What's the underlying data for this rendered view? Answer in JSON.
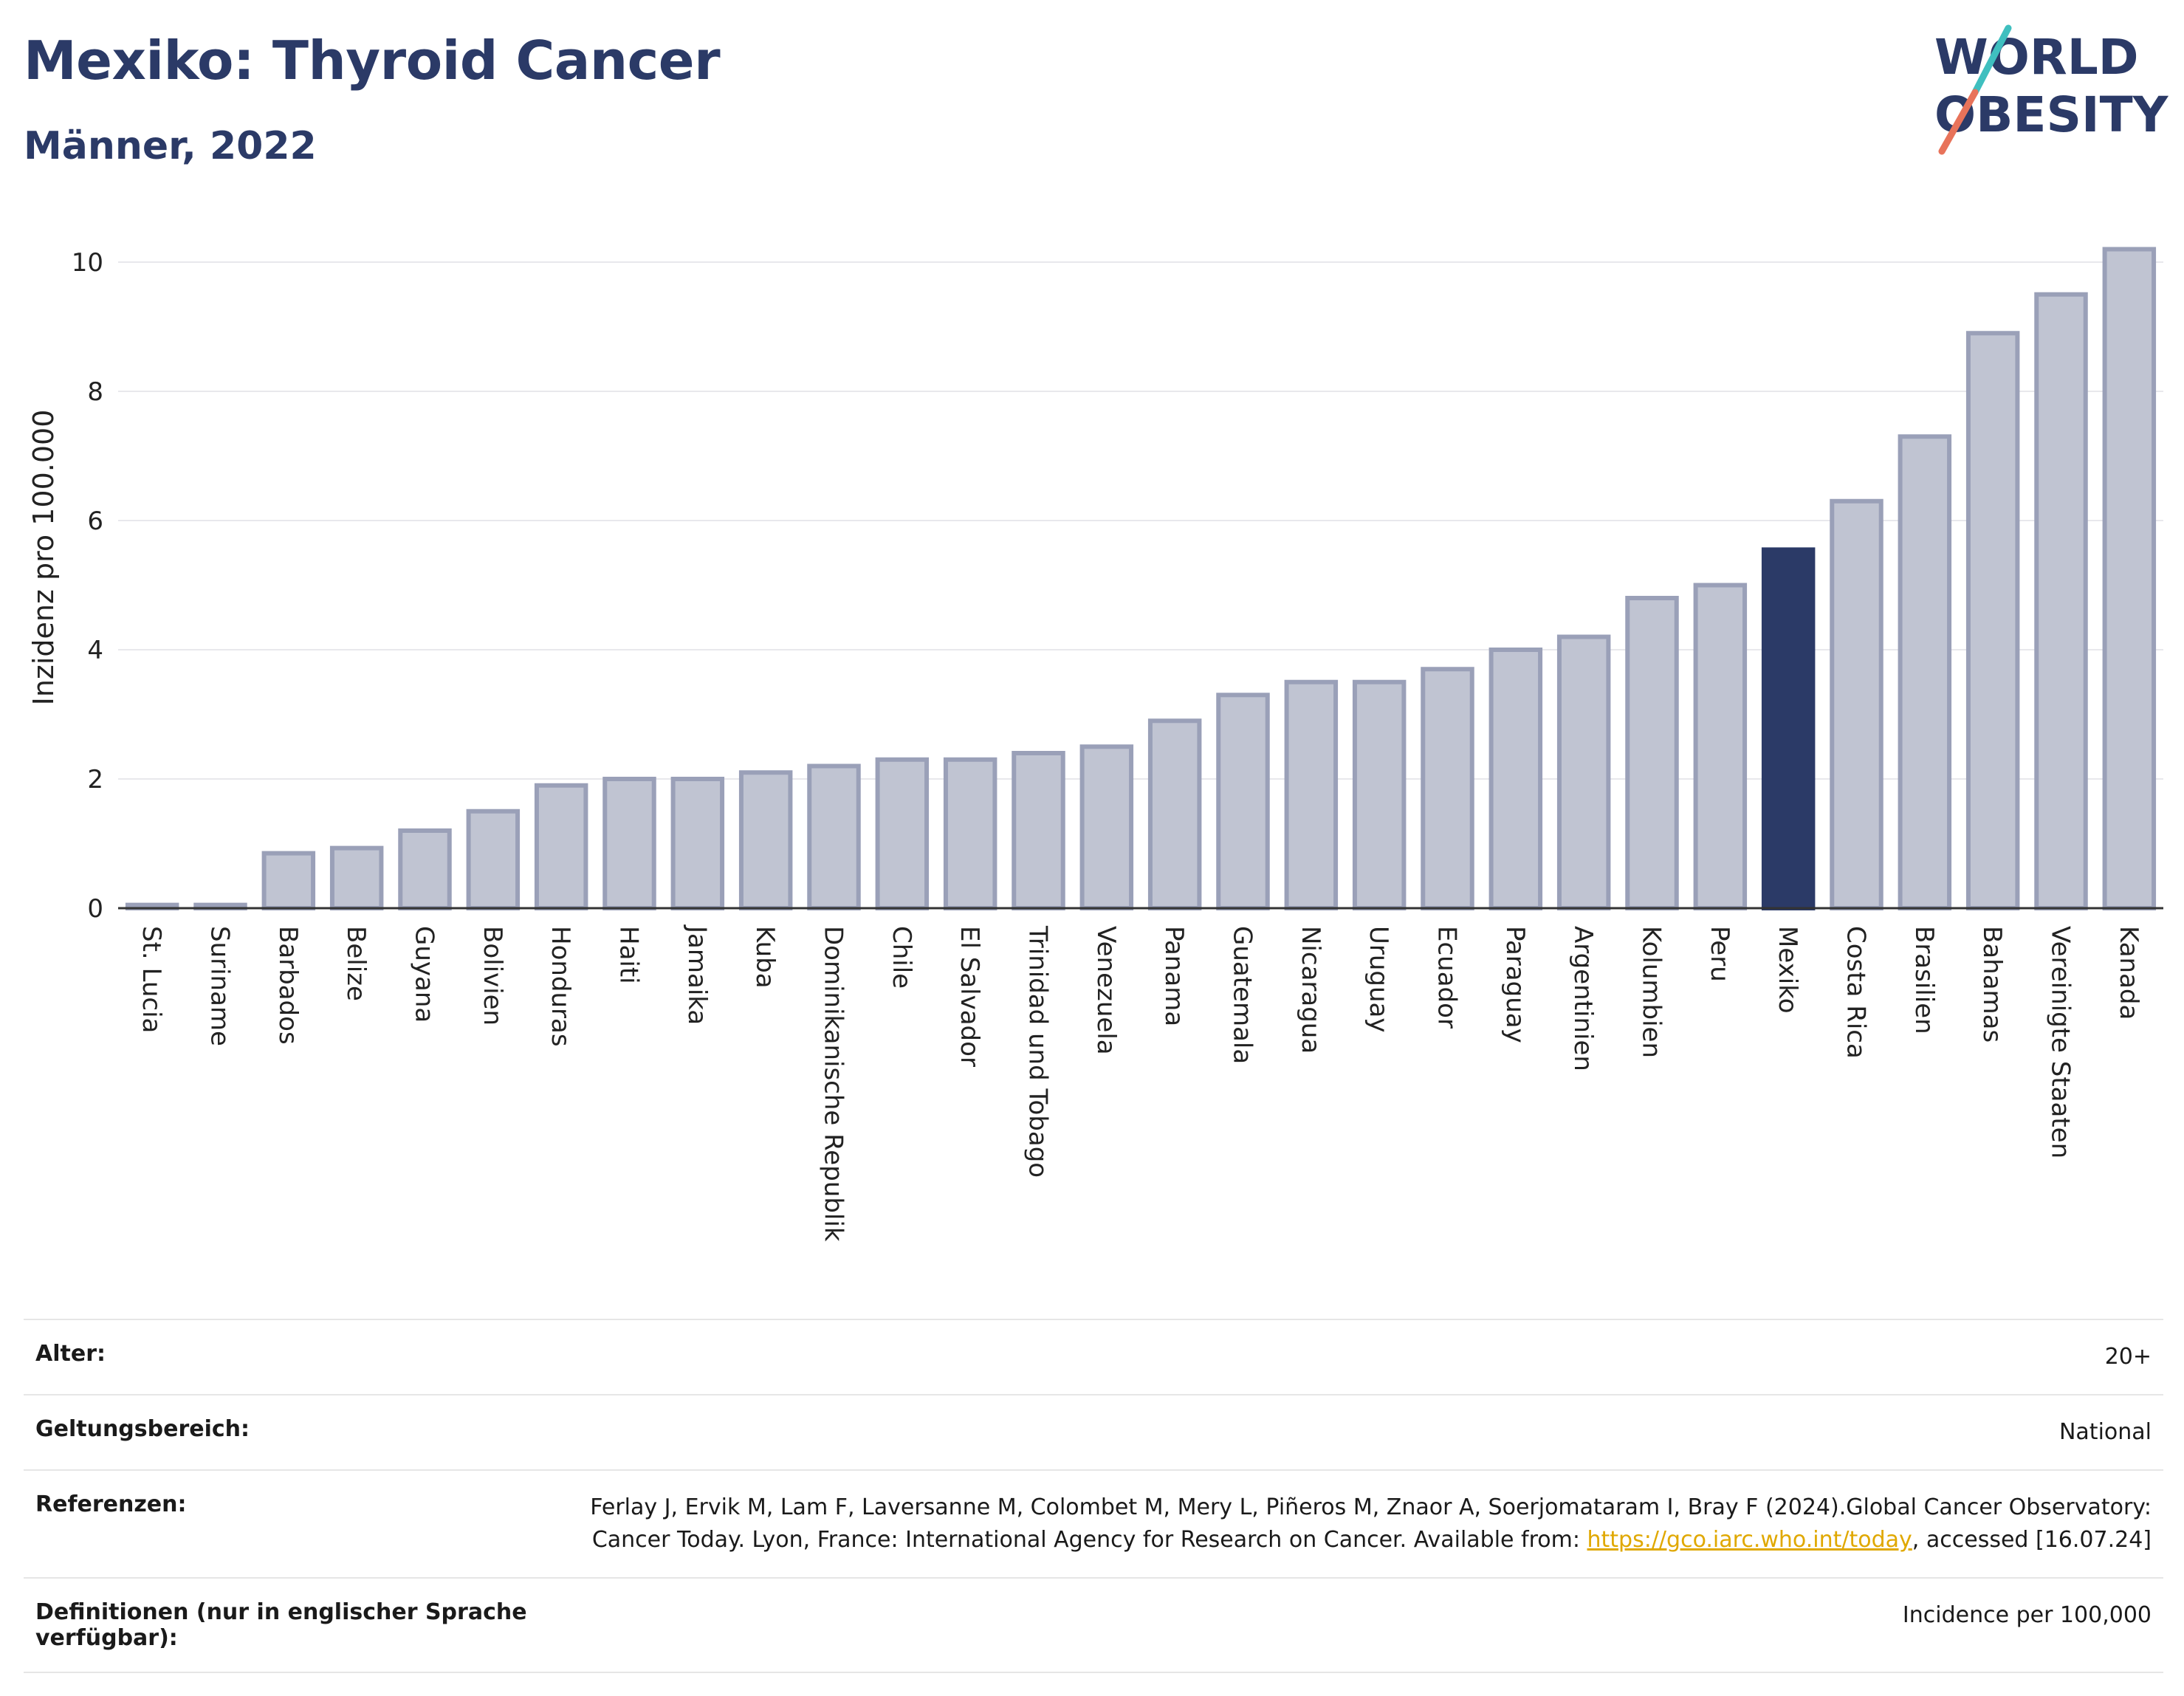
{
  "header": {
    "title": "Mexiko: Thyroid Cancer",
    "subtitle": "Männer, 2022"
  },
  "logo": {
    "line1": "WORLD",
    "line2": "OBESITY"
  },
  "colors": {
    "highlight": "#2b3a67",
    "bar_fill": "#c0c4d2",
    "bar_stroke": "#9aa0b8",
    "title": "#2b3a67",
    "link": "#e0a800",
    "logo_teal": "#3fbfbf",
    "logo_coral": "#e8735a"
  },
  "chart_data": {
    "type": "bar",
    "ylabel": "Inzidenz pro 100.000",
    "ylim": [
      0,
      10.4
    ],
    "yticks": [
      0,
      2,
      4,
      6,
      8,
      10
    ],
    "grid": true,
    "highlight_category": "Mexiko",
    "categories": [
      "St. Lucia",
      "Suriname",
      "Barbados",
      "Belize",
      "Guyana",
      "Bolivien",
      "Honduras",
      "Haiti",
      "Jamaika",
      "Kuba",
      "Dominikanische Republik",
      "Chile",
      "El Salvador",
      "Trinidad und Tobago",
      "Venezuela",
      "Panama",
      "Guatemala",
      "Nicaragua",
      "Uruguay",
      "Ecuador",
      "Paraguay",
      "Argentinien",
      "Kolumbien",
      "Peru",
      "Mexiko",
      "Costa Rica",
      "Brasilien",
      "Bahamas",
      "Vereinigte Staaten",
      "Kanada"
    ],
    "values": [
      0.05,
      0.05,
      0.85,
      0.93,
      1.2,
      1.5,
      1.9,
      2.0,
      2.0,
      2.1,
      2.2,
      2.3,
      2.3,
      2.4,
      2.5,
      2.9,
      3.3,
      3.5,
      3.5,
      3.7,
      4.0,
      4.2,
      4.8,
      5.0,
      5.55,
      6.3,
      7.3,
      8.9,
      9.5,
      10.2
    ]
  },
  "meta": [
    {
      "key": "Alter:",
      "value": "20+"
    },
    {
      "key": "Geltungsbereich:",
      "value": "National"
    },
    {
      "key": "Referenzen:",
      "value_pre": "Ferlay J, Ervik M, Lam F, Laversanne M, Colombet M, Mery L, Piñeros M, Znaor A, Soerjomataram I, Bray F (2024).Global Cancer Observatory: Cancer Today. Lyon, France: International Agency for Research on Cancer. Available from: ",
      "link": "https://gco.iarc.who.int/today",
      "value_post": ", accessed [16.07.24]"
    },
    {
      "key": "Definitionen (nur in englischer Sprache verfügbar):",
      "value": "Incidence per 100,000"
    }
  ]
}
